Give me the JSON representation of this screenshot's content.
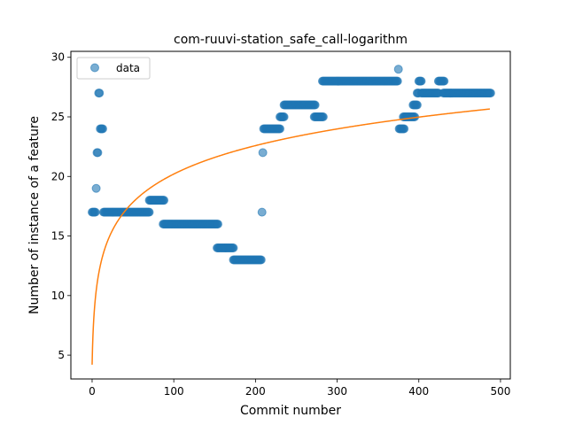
{
  "chart_data": {
    "type": "scatter",
    "title": "com-ruuvi-station_safe_call-logarithm",
    "xlabel": "Commit number",
    "ylabel": "Number of instance of a feature",
    "xlim": [
      -26,
      512
    ],
    "ylim": [
      3.0,
      30.5
    ],
    "xticks": [
      0,
      100,
      200,
      300,
      400,
      500
    ],
    "yticks": [
      5,
      10,
      15,
      20,
      25,
      30
    ],
    "legend": {
      "position": "top-left",
      "entries": [
        "data"
      ]
    },
    "grid": false,
    "colors": {
      "data": "#1f77b4",
      "fit": "#ff7f0e"
    },
    "series": [
      {
        "name": "data",
        "kind": "scatter",
        "segments": [
          {
            "from": 0,
            "to": 4,
            "value": 17
          },
          {
            "from": 5,
            "to": 5,
            "value": 19
          },
          {
            "from": 6,
            "to": 6,
            "value": 22
          },
          {
            "from": 7,
            "to": 7,
            "value": 22
          },
          {
            "from": 8,
            "to": 9,
            "value": 27
          },
          {
            "from": 10,
            "to": 13,
            "value": 24
          },
          {
            "from": 14,
            "to": 70,
            "value": 17
          },
          {
            "from": 70,
            "to": 88,
            "value": 18
          },
          {
            "from": 87,
            "to": 154,
            "value": 16
          },
          {
            "from": 153,
            "to": 173,
            "value": 14
          },
          {
            "from": 173,
            "to": 207,
            "value": 13
          },
          {
            "from": 208,
            "to": 208,
            "value": 17
          },
          {
            "from": 209,
            "to": 209,
            "value": 22
          },
          {
            "from": 210,
            "to": 230,
            "value": 24
          },
          {
            "from": 230,
            "to": 235,
            "value": 25
          },
          {
            "from": 235,
            "to": 273,
            "value": 26
          },
          {
            "from": 272,
            "to": 283,
            "value": 25
          },
          {
            "from": 282,
            "to": 374,
            "value": 28
          },
          {
            "from": 375,
            "to": 375,
            "value": 29
          },
          {
            "from": 376,
            "to": 382,
            "value": 24
          },
          {
            "from": 381,
            "to": 395,
            "value": 25
          },
          {
            "from": 393,
            "to": 398,
            "value": 26
          },
          {
            "from": 398,
            "to": 400,
            "value": 27
          },
          {
            "from": 400,
            "to": 403,
            "value": 28
          },
          {
            "from": 403,
            "to": 424,
            "value": 27
          },
          {
            "from": 424,
            "to": 431,
            "value": 28
          },
          {
            "from": 430,
            "to": 488,
            "value": 27
          }
        ]
      },
      {
        "name": "",
        "kind": "line",
        "equation": {
          "a": 4.2,
          "b": 3.467
        },
        "x_range": [
          0,
          487
        ]
      }
    ]
  }
}
